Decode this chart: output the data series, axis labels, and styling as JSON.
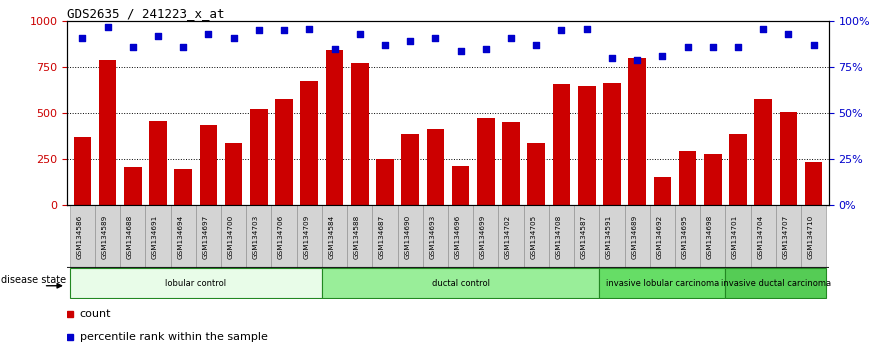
{
  "title": "GDS2635 / 241223_x_at",
  "samples": [
    "GSM134586",
    "GSM134589",
    "GSM134688",
    "GSM134691",
    "GSM134694",
    "GSM134697",
    "GSM134700",
    "GSM134703",
    "GSM134706",
    "GSM134709",
    "GSM134584",
    "GSM134588",
    "GSM134687",
    "GSM134690",
    "GSM134693",
    "GSM134696",
    "GSM134699",
    "GSM134702",
    "GSM134705",
    "GSM134708",
    "GSM134587",
    "GSM134591",
    "GSM134689",
    "GSM134692",
    "GSM134695",
    "GSM134698",
    "GSM134701",
    "GSM134704",
    "GSM134707",
    "GSM134710"
  ],
  "counts": [
    370,
    790,
    210,
    460,
    200,
    435,
    340,
    525,
    575,
    675,
    845,
    775,
    250,
    390,
    415,
    215,
    475,
    450,
    340,
    660,
    650,
    665,
    800,
    155,
    295,
    280,
    390,
    575,
    505,
    235
  ],
  "percentiles": [
    91,
    97,
    86,
    92,
    86,
    93,
    91,
    95,
    95,
    96,
    85,
    93,
    87,
    89,
    91,
    84,
    85,
    91,
    87,
    95,
    96,
    80,
    79,
    81,
    86,
    86,
    86,
    96,
    93,
    87
  ],
  "groups": [
    {
      "label": "lobular control",
      "start": 0,
      "end": 10,
      "color": "#e8fce8"
    },
    {
      "label": "ductal control",
      "start": 10,
      "end": 21,
      "color": "#99ee99"
    },
    {
      "label": "invasive lobular carcinoma",
      "start": 21,
      "end": 26,
      "color": "#66dd66"
    },
    {
      "label": "invasive ductal carcinoma",
      "start": 26,
      "end": 30,
      "color": "#55cc55"
    }
  ],
  "bar_color": "#cc0000",
  "dot_color": "#0000cc",
  "ylim_left": [
    0,
    1000
  ],
  "ylim_right": [
    0,
    100
  ],
  "yticks_left": [
    0,
    250,
    500,
    750,
    1000
  ],
  "ytick_labels_left": [
    "0",
    "250",
    "500",
    "750",
    "1000"
  ],
  "yticks_right": [
    0,
    25,
    50,
    75,
    100
  ],
  "ytick_labels_right": [
    "0%",
    "25%",
    "50%",
    "75%",
    "100%"
  ],
  "grid_values": [
    250,
    500,
    750
  ],
  "tick_bg_color": "#d4d4d4",
  "disease_state_label": "disease state",
  "legend_count_label": "count",
  "legend_pct_label": "percentile rank within the sample"
}
